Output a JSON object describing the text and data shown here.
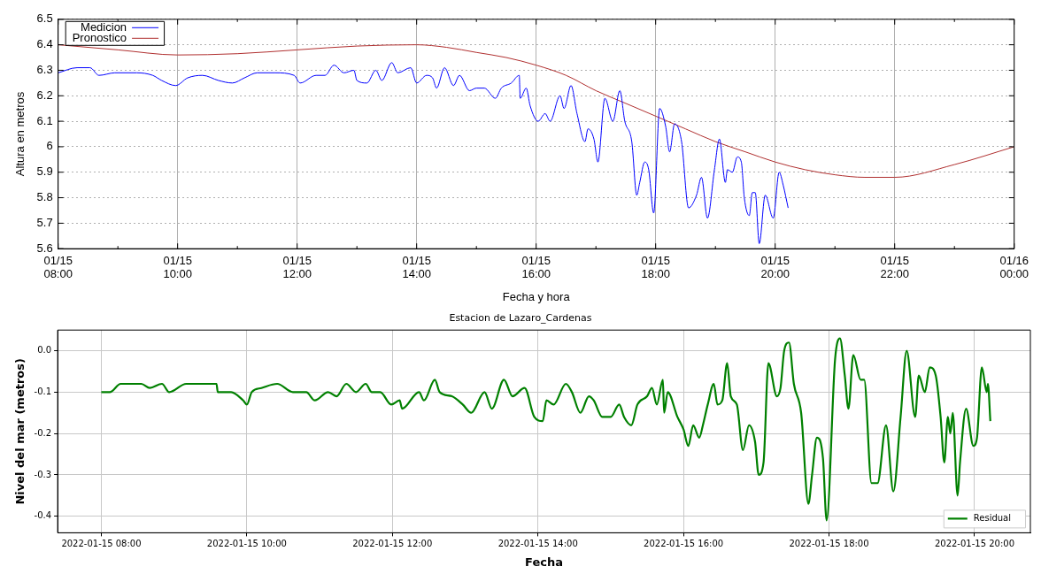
{
  "chart_data": [
    {
      "type": "line",
      "xlabel": "Fecha y hora",
      "ylabel": "Altura en metros",
      "xlim": [
        "--01-15T08:00",
        "--01-16T00:00"
      ],
      "ylim": [
        5.6,
        6.5
      ],
      "xticks": [
        {
          "value": "--01-15T08:00",
          "label": "01/15\n08:00"
        },
        {
          "value": "--01-15T09:00",
          "label": null
        },
        {
          "value": "--01-15T10:00",
          "label": "01/15\n10:00"
        },
        {
          "value": "--01-15T11:00",
          "label": null
        },
        {
          "value": "--01-15T12:00",
          "label": "01/15\n12:00"
        },
        {
          "value": "--01-15T13:00",
          "label": null
        },
        {
          "value": "--01-15T14:00",
          "label": "01/15\n14:00"
        },
        {
          "value": "--01-15T15:00",
          "label": null
        },
        {
          "value": "--01-15T16:00",
          "label": "01/15\n16:00"
        },
        {
          "value": "--01-15T17:00",
          "label": null
        },
        {
          "value": "--01-15T18:00",
          "label": "01/15\n18:00"
        },
        {
          "value": "--01-15T19:00",
          "label": null
        },
        {
          "value": "--01-15T20:00",
          "label": "01/15\n20:00"
        },
        {
          "value": "--01-15T21:00",
          "label": null
        },
        {
          "value": "--01-15T22:00",
          "label": "01/15\n22:00"
        },
        {
          "value": "--01-15T23:00",
          "label": null
        },
        {
          "value": "--01-16T00:00",
          "label": "01/16\n00:00"
        }
      ],
      "yticks": [
        5.6,
        5.7,
        5.8,
        5.9,
        6,
        6.1,
        6.2,
        6.3,
        6.4,
        6.5
      ],
      "grid": true,
      "legend": "top left",
      "marker": "none",
      "series": [
        {
          "name": "Medicion",
          "color": "#0000ff",
          "x": [
            "--01-15T08:00",
            "--01-15T08:19",
            "--01-15T08:32",
            "--01-15T08:41",
            "--01-15T08:57",
            "--01-15T09:19",
            "--01-15T09:35",
            "--01-15T09:44",
            "--01-15T09:58",
            "--01-15T10:10",
            "--01-15T10:25",
            "--01-15T10:41",
            "--01-15T10:55",
            "--01-15T11:07",
            "--01-15T11:20",
            "--01-15T11:38",
            "--01-15T11:57",
            "--01-15T12:03",
            "--01-15T12:19",
            "--01-15T12:28",
            "--01-15T12:37",
            "--01-15T12:47",
            "--01-15T12:57",
            "--01-15T13:00",
            "--01-15T13:10",
            "--01-15T13:19",
            "--01-15T13:25",
            "--01-15T13:35",
            "--01-15T13:41",
            "--01-15T13:54",
            "--01-15T14:00",
            "--01-15T14:10",
            "--01-15T14:16",
            "--01-15T14:20",
            "--01-15T14:28",
            "--01-15T14:37",
            "--01-15T14:43",
            "--01-15T14:53",
            "--01-15T15:00",
            "--01-15T15:08",
            "--01-15T15:19",
            "--01-15T15:25",
            "--01-15T15:35",
            "--01-15T15:43",
            "--01-15T15:44",
            "--01-15T15:50",
            "--01-15T15:54",
            "--01-15T16:02",
            "--01-15T16:09",
            "--01-15T16:14",
            "--01-15T16:24",
            "--01-15T16:28",
            "--01-15T16:35",
            "--01-15T16:41",
            "--01-15T16:49",
            "--01-15T16:52",
            "--01-15T16:58",
            "--01-15T17:02",
            "--01-15T17:09",
            "--01-15T17:17",
            "--01-15T17:24",
            "--01-15T17:29",
            "--01-15T17:36",
            "--01-15T17:41",
            "--01-15T17:44",
            "--01-15T17:49",
            "--01-15T17:53",
            "--01-15T17:58",
            "--01-15T18:04",
            "--01-15T18:10",
            "--01-15T18:14",
            "--01-15T18:19",
            "--01-15T18:26",
            "--01-15T18:33",
            "--01-15T18:41",
            "--01-15T18:46",
            "--01-15T18:52",
            "--01-15T18:59",
            "--01-15T19:04",
            "--01-15T19:10",
            "--01-15T19:12",
            "--01-15T19:17",
            "--01-15T19:22",
            "--01-15T19:26",
            "--01-15T19:29",
            "--01-15T19:34",
            "--01-15T19:37",
            "--01-15T19:40",
            "--01-15T19:44",
            "--01-15T19:50",
            "--01-15T19:58",
            "--01-15T20:04",
            "--01-15T20:08",
            "--01-15T20:13"
          ],
          "values": [
            6.29,
            6.31,
            6.31,
            6.28,
            6.29,
            6.29,
            6.28,
            6.26,
            6.24,
            6.27,
            6.28,
            6.26,
            6.25,
            6.27,
            6.29,
            6.29,
            6.28,
            6.25,
            6.28,
            6.28,
            6.32,
            6.29,
            6.3,
            6.26,
            6.25,
            6.3,
            6.26,
            6.33,
            6.29,
            6.31,
            6.25,
            6.28,
            6.27,
            6.23,
            6.31,
            6.24,
            6.28,
            6.22,
            6.23,
            6.23,
            6.19,
            6.23,
            6.25,
            6.28,
            6.19,
            6.23,
            6.16,
            6.1,
            6.13,
            6.1,
            6.2,
            6.15,
            6.24,
            6.13,
            6.02,
            6.07,
            6.03,
            5.94,
            6.19,
            6.1,
            6.22,
            6.1,
            6.02,
            5.81,
            5.86,
            5.94,
            5.91,
            5.74,
            6.15,
            6.08,
            5.98,
            6.09,
            6.02,
            5.76,
            5.81,
            5.88,
            5.72,
            5.91,
            6.03,
            5.86,
            5.91,
            5.9,
            5.96,
            5.94,
            5.8,
            5.73,
            5.82,
            5.82,
            5.62,
            5.81,
            5.72,
            5.9,
            5.85,
            5.76
          ]
        },
        {
          "name": "Pronostico",
          "color": "#b03030",
          "x": [
            "--01-15T08:00",
            "--01-15T09:00",
            "--01-15T10:00",
            "--01-15T11:00",
            "--01-15T12:00",
            "--01-15T13:00",
            "--01-15T14:00",
            "--01-15T14:30",
            "--01-15T15:00",
            "--01-15T15:30",
            "--01-15T16:00",
            "--01-15T16:30",
            "--01-15T17:00",
            "--01-15T17:30",
            "--01-15T18:00",
            "--01-15T18:30",
            "--01-15T19:00",
            "--01-15T19:30",
            "--01-15T20:00",
            "--01-15T20:30",
            "--01-15T21:00",
            "--01-15T21:30",
            "--01-15T22:00",
            "--01-15T23:00",
            "--01-16T00:00"
          ],
          "values": [
            6.4,
            6.38,
            6.36,
            6.365,
            6.38,
            6.395,
            6.4,
            6.39,
            6.37,
            6.35,
            6.32,
            6.28,
            6.22,
            6.17,
            6.12,
            6.07,
            6.02,
            5.98,
            5.94,
            5.91,
            5.89,
            5.88,
            5.88,
            5.93,
            6.0
          ]
        }
      ]
    },
    {
      "type": "line",
      "title": "Estacion de Lazaro_Cardenas",
      "xlabel": "Fecha",
      "ylabel": "Nivel del mar (metros)",
      "xlim": [
        "2022-01-15T07:24",
        "2022-01-15T20:46"
      ],
      "ylim": [
        -0.44,
        0.05
      ],
      "xticks": [
        {
          "value": "2022-01-15T08:00",
          "label": "2022-01-15 08:00"
        },
        {
          "value": "2022-01-15T10:00",
          "label": "2022-01-15 10:00"
        },
        {
          "value": "2022-01-15T12:00",
          "label": "2022-01-15 12:00"
        },
        {
          "value": "2022-01-15T14:00",
          "label": "2022-01-15 14:00"
        },
        {
          "value": "2022-01-15T16:00",
          "label": "2022-01-15 16:00"
        },
        {
          "value": "2022-01-15T18:00",
          "label": "2022-01-15 18:00"
        },
        {
          "value": "2022-01-15T20:00",
          "label": "2022-01-15 20:00"
        }
      ],
      "yticks": [
        -0.4,
        -0.3,
        -0.2,
        -0.1,
        {
          "value": 0,
          "label": "0.0"
        }
      ],
      "grid": true,
      "legend": "bottom right",
      "marker": "none",
      "series": [
        {
          "name": "Residual",
          "color": "#008000",
          "x": [
            "2022-01-15T08:00",
            "2022-01-15T08:07",
            "2022-01-15T08:16",
            "2022-01-15T08:25",
            "2022-01-15T08:33",
            "2022-01-15T08:40",
            "2022-01-15T08:50",
            "2022-01-15T08:56",
            "2022-01-15T09:10",
            "2022-01-15T09:18",
            "2022-01-15T09:29",
            "2022-01-15T09:35",
            "2022-01-15T09:36",
            "2022-01-15T09:47",
            "2022-01-15T09:57",
            "2022-01-15T10:00",
            "2022-01-15T10:04",
            "2022-01-15T10:12",
            "2022-01-15T10:25",
            "2022-01-15T10:38",
            "2022-01-15T10:49",
            "2022-01-15T10:56",
            "2022-01-15T11:07",
            "2022-01-15T11:14",
            "2022-01-15T11:22",
            "2022-01-15T11:30",
            "2022-01-15T11:38",
            "2022-01-15T11:43",
            "2022-01-15T11:50",
            "2022-01-15T11:59",
            "2022-01-15T12:06",
            "2022-01-15T12:08",
            "2022-01-15T12:22",
            "2022-01-15T12:26",
            "2022-01-15T12:35",
            "2022-01-15T12:39",
            "2022-01-15T12:49",
            "2022-01-15T12:58",
            "2022-01-15T13:05",
            "2022-01-15T13:16",
            "2022-01-15T13:22",
            "2022-01-15T13:32",
            "2022-01-15T13:39",
            "2022-01-15T13:49",
            "2022-01-15T13:57",
            "2022-01-15T14:04",
            "2022-01-15T14:07",
            "2022-01-15T14:13",
            "2022-01-15T14:23",
            "2022-01-15T14:28",
            "2022-01-15T14:35",
            "2022-01-15T14:42",
            "2022-01-15T14:46",
            "2022-01-15T14:53",
            "2022-01-15T15:00",
            "2022-01-15T15:07",
            "2022-01-15T15:11",
            "2022-01-15T15:17",
            "2022-01-15T15:22",
            "2022-01-15T15:30",
            "2022-01-15T15:34",
            "2022-01-15T15:38",
            "2022-01-15T15:43",
            "2022-01-15T15:44",
            "2022-01-15T15:47",
            "2022-01-15T15:55",
            "2022-01-15T16:00",
            "2022-01-15T16:04",
            "2022-01-15T16:08",
            "2022-01-15T16:13",
            "2022-01-15T16:16",
            "2022-01-15T16:20",
            "2022-01-15T16:25",
            "2022-01-15T16:28",
            "2022-01-15T16:32",
            "2022-01-15T16:36",
            "2022-01-15T16:39",
            "2022-01-15T16:44",
            "2022-01-15T16:49",
            "2022-01-15T16:54",
            "2022-01-15T16:59",
            "2022-01-15T17:02",
            "2022-01-15T17:06",
            "2022-01-15T17:10",
            "2022-01-15T17:17",
            "2022-01-15T17:20",
            "2022-01-15T17:23",
            "2022-01-15T17:27",
            "2022-01-15T17:31",
            "2022-01-15T17:37",
            "2022-01-15T17:43",
            "2022-01-15T17:46",
            "2022-01-15T17:50",
            "2022-01-15T17:55",
            "2022-01-15T17:58",
            "2022-01-15T18:05",
            "2022-01-15T18:09",
            "2022-01-15T18:13",
            "2022-01-15T18:16",
            "2022-01-15T18:20",
            "2022-01-15T18:26",
            "2022-01-15T18:29",
            "2022-01-15T18:35",
            "2022-01-15T18:40",
            "2022-01-15T18:47",
            "2022-01-15T18:53",
            "2022-01-15T18:59",
            "2022-01-15T19:04",
            "2022-01-15T19:11",
            "2022-01-15T19:14",
            "2022-01-15T19:19",
            "2022-01-15T19:23",
            "2022-01-15T19:28",
            "2022-01-15T19:32",
            "2022-01-15T19:35",
            "2022-01-15T19:38",
            "2022-01-15T19:40",
            "2022-01-15T19:42",
            "2022-01-15T19:46",
            "2022-01-15T19:48",
            "2022-01-15T19:53",
            "2022-01-15T19:59",
            "2022-01-15T20:02",
            "2022-01-15T20:06",
            "2022-01-15T20:10",
            "2022-01-15T20:11",
            "2022-01-15T20:13"
          ],
          "values": [
            -0.1,
            -0.1,
            -0.08,
            -0.08,
            -0.08,
            -0.09,
            -0.08,
            -0.1,
            -0.08,
            -0.08,
            -0.08,
            -0.08,
            -0.1,
            -0.1,
            -0.12,
            -0.13,
            -0.1,
            -0.09,
            -0.08,
            -0.1,
            -0.1,
            -0.12,
            -0.1,
            -0.11,
            -0.08,
            -0.1,
            -0.08,
            -0.1,
            -0.1,
            -0.13,
            -0.12,
            -0.14,
            -0.1,
            -0.12,
            -0.07,
            -0.1,
            -0.11,
            -0.13,
            -0.15,
            -0.1,
            -0.14,
            -0.07,
            -0.11,
            -0.09,
            -0.16,
            -0.17,
            -0.12,
            -0.13,
            -0.08,
            -0.1,
            -0.15,
            -0.11,
            -0.12,
            -0.16,
            -0.16,
            -0.13,
            -0.16,
            -0.18,
            -0.13,
            -0.11,
            -0.09,
            -0.13,
            -0.07,
            -0.15,
            -0.1,
            -0.16,
            -0.19,
            -0.23,
            -0.18,
            -0.21,
            -0.18,
            -0.13,
            -0.08,
            -0.13,
            -0.12,
            -0.03,
            -0.11,
            -0.13,
            -0.24,
            -0.18,
            -0.22,
            -0.3,
            -0.27,
            -0.03,
            -0.11,
            -0.09,
            0.0,
            0.02,
            -0.08,
            -0.15,
            -0.37,
            -0.3,
            -0.21,
            -0.26,
            -0.41,
            -0.02,
            0.03,
            -0.06,
            -0.14,
            -0.01,
            -0.07,
            -0.07,
            -0.32,
            -0.32,
            -0.18,
            -0.34,
            -0.16,
            0.0,
            -0.16,
            -0.06,
            -0.1,
            -0.04,
            -0.06,
            -0.16,
            -0.27,
            -0.16,
            -0.2,
            -0.15,
            -0.35,
            -0.27,
            -0.14,
            -0.23,
            -0.21,
            -0.04,
            -0.1,
            -0.08,
            -0.17
          ]
        }
      ]
    }
  ]
}
